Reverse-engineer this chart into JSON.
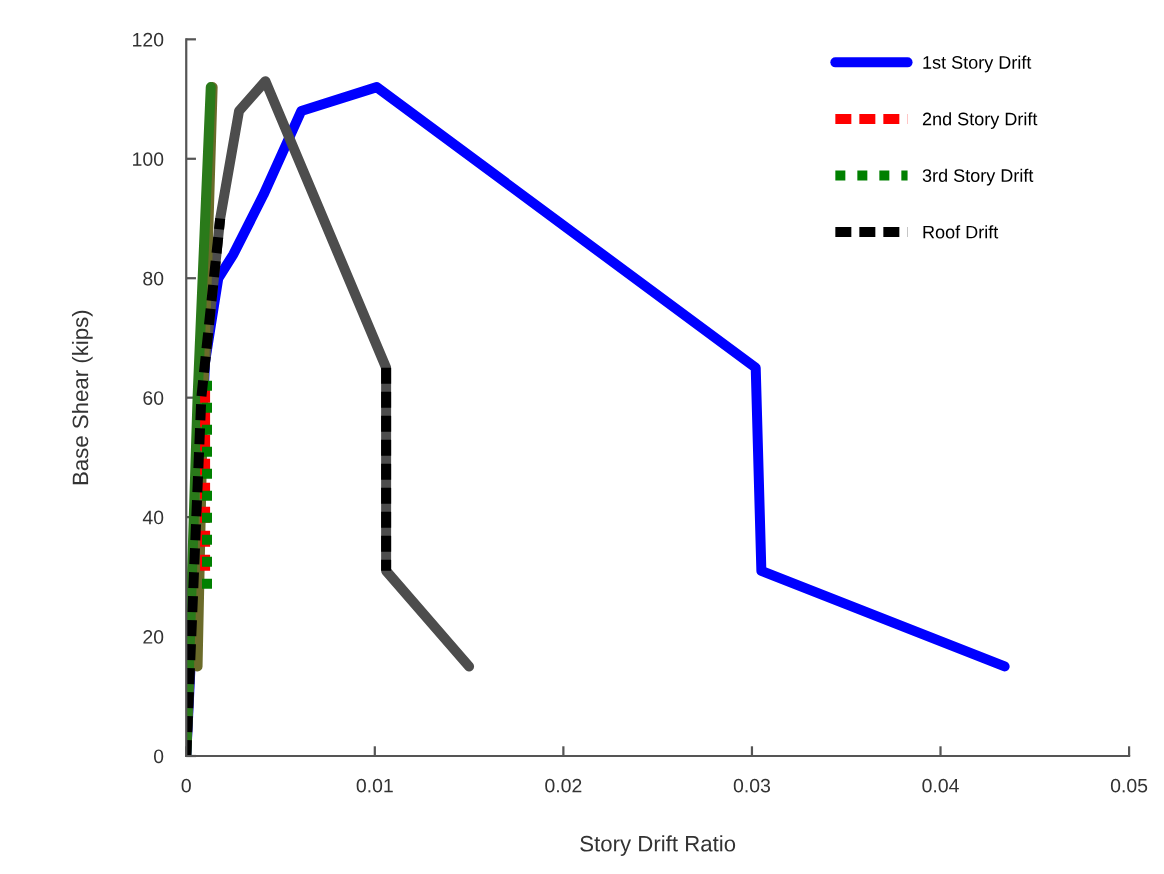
{
  "chart_data": {
    "type": "line",
    "xlabel": "Story Drift Ratio",
    "ylabel": "Base Shear (kips)",
    "xlim": [
      0,
      0.05
    ],
    "xticks": [
      0,
      0.01,
      0.02,
      0.03,
      0.04,
      0.05
    ],
    "ylim": [
      0,
      120
    ],
    "yticks": [
      0,
      20,
      40,
      60,
      80,
      100,
      120
    ],
    "grid": false,
    "legend": "top right",
    "series": [
      {
        "name": "1st Story Drift",
        "color": "#0000ff",
        "line_style": "solid",
        "x": [
          0,
          0.001,
          0.0017,
          0.0025,
          0.0041,
          0.0061,
          0.0101,
          0.0302,
          0.0305,
          0.0434
        ],
        "values": [
          0,
          66,
          80,
          84,
          94,
          108,
          112,
          65,
          31,
          15
        ]
      },
      {
        "color": "#4d4d4d",
        "line_style": "solid",
        "x": [
          0,
          0.0008,
          0.0018,
          0.0028,
          0.0042,
          0.0106,
          0.0106,
          0.015
        ],
        "values": [
          0,
          60,
          90,
          108,
          113,
          65,
          31,
          15
        ]
      },
      {
        "color": "#6b6b2a",
        "line_style": "solid",
        "x": [
          0.0006,
          0.0009,
          0.0014
        ],
        "values": [
          15,
          60,
          112
        ]
      },
      {
        "color": "#2a7a1a",
        "line_style": "solid",
        "x": [
          0,
          0.0006,
          0.0013
        ],
        "values": [
          0,
          60,
          112
        ]
      },
      {
        "name": "2nd Story Drift",
        "color": "#ff0000",
        "line_style": "dashed",
        "x": [
          0.001,
          0.001
        ],
        "values": [
          31,
          62
        ]
      },
      {
        "name": "3rd Story Drift",
        "color": "#008000",
        "line_style": "dotted",
        "x": [
          0.0011,
          0.0011
        ],
        "values": [
          28,
          64
        ]
      },
      {
        "name": "Roof Drift",
        "color": "#000000",
        "line_style": "dashed",
        "x": [
          0,
          0.0008,
          0.0018,
          null,
          0.0106,
          0.0106
        ],
        "values": [
          0,
          60,
          90,
          null,
          65,
          31
        ]
      }
    ]
  }
}
